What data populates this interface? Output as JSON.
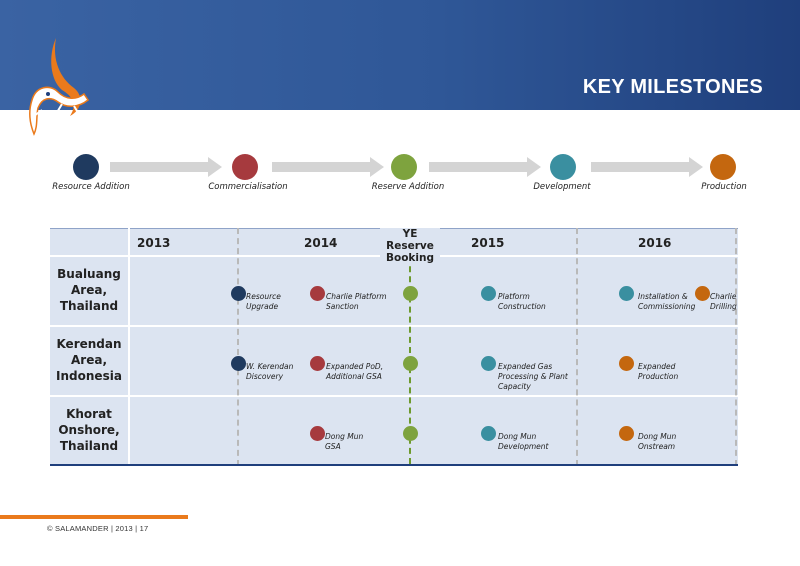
{
  "header": {
    "title": "KEY MILESTONES"
  },
  "colors": {
    "navy": "#1f3a5f",
    "red": "#a63a3e",
    "green": "#7ea33e",
    "teal": "#3a8fa0",
    "orange": "#c4670f",
    "brand_blue": "#2f5797",
    "brand_orange": "#ea7a1c"
  },
  "logo": {
    "icon": "salamander-logo"
  },
  "flow": {
    "stages": [
      "Resource  Addition",
      "Commercialisation",
      "Reserve Addition",
      "Development",
      "Production"
    ]
  },
  "timeline": {
    "years": [
      "2013",
      "2014",
      "2015",
      "2016"
    ],
    "ye_marker": "YE Reserve Booking",
    "rows": [
      {
        "label": "Bualuang Area, Thailand",
        "m1": "Resource Upgrade",
        "m2": "Charlie Platform Sanction",
        "m3": "Platform Construction",
        "m4": "Installation & Commissioning",
        "m5": "Charlie Drilling"
      },
      {
        "label": "Kerendan Area, Indonesia",
        "m1": "W. Kerendan Discovery",
        "m2": "Expanded PoD, Additional GSA",
        "m3": "Expanded Gas Processing & Plant Capacity",
        "m4": "Expanded Production"
      },
      {
        "label": "Khorat Onshore, Thailand",
        "m2": "Dong Mun GSA",
        "m3": "Dong Mun Development",
        "m4": "Dong Mun Onstream"
      }
    ]
  },
  "footer": {
    "text": "© SALAMANDER  |  2013  |    17"
  }
}
